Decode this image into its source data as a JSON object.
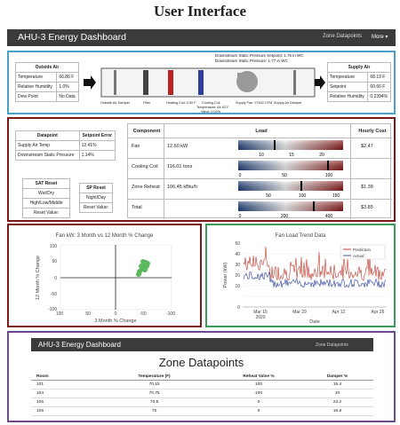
{
  "page_title": "User Interface",
  "nav": {
    "brand": "AHU-3 Energy Dashboard",
    "zone_link": "Zone Datapoints",
    "more": "More ▾"
  },
  "outside_air": {
    "title": "Outside Air",
    "rows": [
      [
        "Temperature",
        "66.86 F"
      ],
      [
        "Relative Humidity",
        "1.0%"
      ],
      [
        "Dew Point",
        "No Data"
      ]
    ]
  },
  "supply_air": {
    "title": "Supply Air",
    "rows": [
      [
        "Temperature",
        "68.19 F"
      ],
      [
        "Setpoint",
        "60.66 F"
      ],
      [
        "Relative Humidity",
        "0.2394%"
      ]
    ]
  },
  "schematic": {
    "static1": "Downstream Static Pressure Setpoint: 1.75 in WC",
    "static2": "Downstream Static Pressure: 1.77 in WC",
    "labels": [
      "Outside Air Damper",
      "Filter",
      "Heating Coil: 0.00 F",
      "Cooling Coil",
      "Supply Fan: 27402 CFM",
      "Supply Air Damper"
    ],
    "cooling1": "Temperature: 64.92 F",
    "cooling2": "Valve: 0.00%"
  },
  "setpoint_table": {
    "headers": [
      "Datapoint",
      "Setpoint Error"
    ],
    "rows": [
      [
        "Supply Air Temp",
        "12.41%"
      ],
      [
        "Downstream Static Pressure",
        "1.14%"
      ]
    ]
  },
  "sat_reset": {
    "title": "SAT Reset",
    "items": [
      "Wet/Dry",
      "High/Low/Middle",
      "Reset Value:"
    ]
  },
  "sp_reset": {
    "title": "SP Reset",
    "items": [
      "Night/Day",
      "Reset Value:"
    ]
  },
  "component_table": {
    "headers": [
      "Component",
      "Load",
      "Hourly Cost"
    ],
    "rows": [
      {
        "name": "Fan",
        "value": "12.60 kW",
        "cost": "$2.47",
        "ticks": [
          "10",
          "15",
          "20"
        ]
      },
      {
        "name": "Cooling Coil",
        "value": "116.01 tons",
        "cost": "",
        "ticks": [
          "0",
          "50",
          "100"
        ]
      },
      {
        "name": "Zone Reheat",
        "value": "106.45 kBtu/h",
        "cost": "$1.38",
        "ticks": [
          "50",
          "100",
          "150"
        ]
      },
      {
        "name": "Total",
        "value": "",
        "cost": "$3.85",
        "ticks": [
          "0",
          "200",
          "400"
        ]
      }
    ]
  },
  "scatter": {
    "title": "Fan kW: 3 Month vs 12 Month % Change",
    "xlabel": "3 Month % Change",
    "ylabel": "12 Month % Change",
    "xticks": [
      "100",
      "50",
      "0",
      "-50",
      "-100"
    ],
    "yticks": [
      "100",
      "50",
      "0",
      "-50",
      "-100"
    ]
  },
  "trend": {
    "title": "Fan Load Trend Data",
    "xlabel": "Date",
    "ylabel": "Power (kW)",
    "legend": [
      "Prediction",
      "Actual"
    ],
    "xticks": [
      "Mar 15\n2020",
      "Mar 29",
      "Apr 12",
      "Apr 26"
    ],
    "yticks": [
      "50",
      "40",
      "30",
      "20",
      "10",
      "0"
    ]
  },
  "zone": {
    "brand": "AHU-3 Energy Dashboard",
    "link": "Zone Datapoints",
    "title": "Zone Datapoints",
    "headers": [
      "Room",
      "Temperature (F)",
      "Reheat Valve %",
      "Damper %"
    ],
    "rows": [
      [
        "101",
        "70.15",
        "100",
        "16.4"
      ],
      [
        "104",
        "70.75",
        "100",
        "10"
      ],
      [
        "105",
        "70.5",
        "0",
        "23.2"
      ],
      [
        "106",
        "70",
        "0",
        "16.8"
      ]
    ]
  },
  "colors": {
    "accent_blue": "#4aa0c8",
    "accent_red": "#7a1a1a",
    "accent_green": "#3a9a5a",
    "accent_purple": "#6a4a8a",
    "navbar": "#3b3b3b",
    "scatter": "#5cb85c",
    "prediction": "#c0392b",
    "actual": "#4a5aa8"
  }
}
